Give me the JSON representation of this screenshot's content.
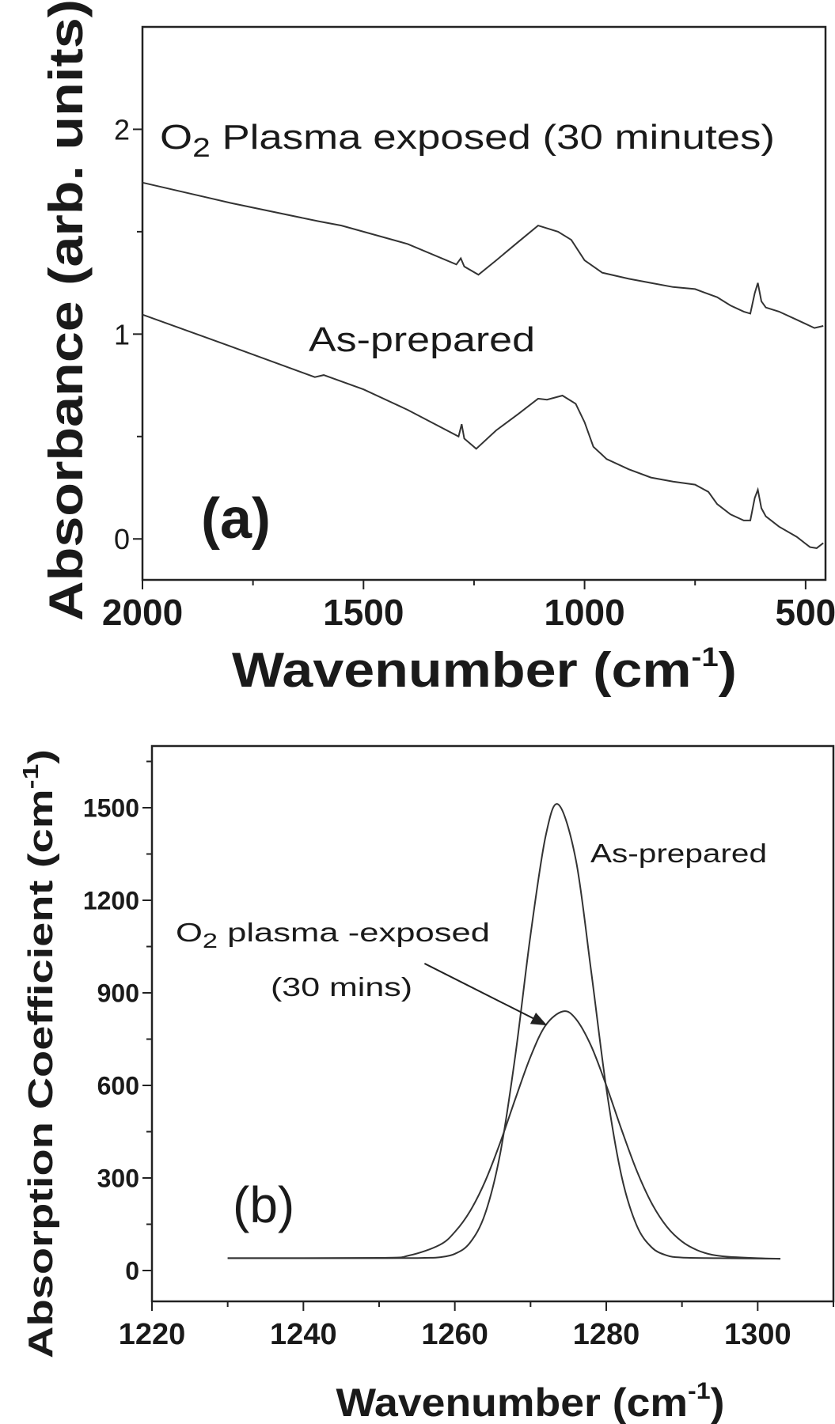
{
  "chart_data": [
    {
      "type": "line",
      "panel_label": "(a)",
      "xlabel": {
        "main": "Wavenumber (cm",
        "sup": "-1",
        "end": ")"
      },
      "ylabel": "Absorbance (arb. units)",
      "xlim": [
        2000,
        455
      ],
      "ylim": [
        -0.2,
        2.5
      ],
      "x_ticks": [
        "2000",
        "1500",
        "1000",
        "500"
      ],
      "x_tick_values": [
        2000,
        1500,
        1000,
        500
      ],
      "y_ticks": [
        "0",
        "1",
        "2"
      ],
      "y_tick_values": [
        0,
        1,
        2
      ],
      "grid": false,
      "annotations": [
        {
          "prefix": "O",
          "sub": "2",
          "rest": " Plasma exposed (30 minutes)"
        },
        {
          "text": "As-prepared"
        }
      ],
      "series": [
        {
          "points": [
            [
              2000,
              1.74
            ],
            [
              1800,
              1.64
            ],
            [
              1600,
              1.55
            ],
            [
              1550,
              1.53
            ],
            [
              1400,
              1.44
            ],
            [
              1290,
              1.34
            ],
            [
              1280,
              1.37
            ],
            [
              1272,
              1.33
            ],
            [
              1240,
              1.29
            ],
            [
              1200,
              1.36
            ],
            [
              1150,
              1.45
            ],
            [
              1105,
              1.53
            ],
            [
              1060,
              1.5
            ],
            [
              1030,
              1.46
            ],
            [
              1000,
              1.36
            ],
            [
              960,
              1.3
            ],
            [
              900,
              1.27
            ],
            [
              850,
              1.25
            ],
            [
              800,
              1.23
            ],
            [
              750,
              1.22
            ],
            [
              700,
              1.18
            ],
            [
              670,
              1.14
            ],
            [
              640,
              1.11
            ],
            [
              625,
              1.1
            ],
            [
              615,
              1.2
            ],
            [
              608,
              1.25
            ],
            [
              600,
              1.16
            ],
            [
              590,
              1.13
            ],
            [
              560,
              1.11
            ],
            [
              520,
              1.07
            ],
            [
              480,
              1.03
            ],
            [
              460,
              1.04
            ]
          ]
        },
        {
          "points": [
            [
              2000,
              1.095
            ],
            [
              1800,
              0.94
            ],
            [
              1610,
              0.79
            ],
            [
              1590,
              0.8
            ],
            [
              1500,
              0.73
            ],
            [
              1400,
              0.63
            ],
            [
              1285,
              0.5
            ],
            [
              1278,
              0.56
            ],
            [
              1272,
              0.49
            ],
            [
              1245,
              0.44
            ],
            [
              1200,
              0.53
            ],
            [
              1150,
              0.61
            ],
            [
              1105,
              0.685
            ],
            [
              1085,
              0.68
            ],
            [
              1050,
              0.7
            ],
            [
              1020,
              0.66
            ],
            [
              1000,
              0.57
            ],
            [
              980,
              0.45
            ],
            [
              950,
              0.39
            ],
            [
              900,
              0.34
            ],
            [
              850,
              0.3
            ],
            [
              800,
              0.28
            ],
            [
              750,
              0.265
            ],
            [
              720,
              0.23
            ],
            [
              700,
              0.17
            ],
            [
              670,
              0.12
            ],
            [
              640,
              0.09
            ],
            [
              625,
              0.09
            ],
            [
              615,
              0.2
            ],
            [
              608,
              0.24
            ],
            [
              600,
              0.15
            ],
            [
              590,
              0.11
            ],
            [
              560,
              0.06
            ],
            [
              520,
              0.01
            ],
            [
              490,
              -0.04
            ],
            [
              475,
              -0.045
            ],
            [
              460,
              -0.02
            ]
          ]
        }
      ]
    },
    {
      "type": "line",
      "panel_label": "(b)",
      "xlabel": {
        "main": "Wavenumber (cm",
        "sup": "-1",
        "end": ")"
      },
      "ylabel": "Absorption Coefficient (cm-1)",
      "ylabel_parts": {
        "main": "Absorption Coefficient (cm",
        "sup": "-1",
        "end": ")"
      },
      "xlim": [
        1220,
        1310
      ],
      "ylim": [
        -100,
        1700
      ],
      "x_ticks": [
        "1220",
        "1240",
        "1260",
        "1280",
        "1300"
      ],
      "x_tick_values": [
        1220,
        1240,
        1260,
        1280,
        1300
      ],
      "y_ticks": [
        "0",
        "300",
        "600",
        "900",
        "1200",
        "1500"
      ],
      "y_tick_values": [
        0,
        300,
        600,
        900,
        1200,
        1500
      ],
      "grid": false,
      "annotations": [
        {
          "text": "As-prepared"
        },
        {
          "prefix": "O",
          "sub": "2",
          "rest": " plasma -exposed",
          "line2": "(30 mins)"
        }
      ],
      "arrow": {
        "from": [
          1256,
          995
        ],
        "to": [
          1272,
          797
        ]
      },
      "series": [
        {
          "name": "As-prepared",
          "points": [
            [
              1230,
              40
            ],
            [
              1250,
              40
            ],
            [
              1256,
              41
            ],
            [
              1258,
              43
            ],
            [
              1260,
              54
            ],
            [
              1262,
              90
            ],
            [
              1264,
              184
            ],
            [
              1266,
              380
            ],
            [
              1268,
              699
            ],
            [
              1270,
              1088
            ],
            [
              1272,
              1409
            ],
            [
              1273.7,
              1510
            ],
            [
              1276,
              1329
            ],
            [
              1278,
              971
            ],
            [
              1280,
              592
            ],
            [
              1282,
              308
            ],
            [
              1284,
              147
            ],
            [
              1286,
              75
            ],
            [
              1288,
              49
            ],
            [
              1290,
              42
            ],
            [
              1295,
              40
            ],
            [
              1303,
              38
            ]
          ]
        },
        {
          "name": "O2 plasma -exposed (30 mins)",
          "points": [
            [
              1230,
              40
            ],
            [
              1250,
              41
            ],
            [
              1254,
              49
            ],
            [
              1258,
              83
            ],
            [
              1260,
              125
            ],
            [
              1262,
              192
            ],
            [
              1264,
              289
            ],
            [
              1266,
              415
            ],
            [
              1268,
              557
            ],
            [
              1270,
              693
            ],
            [
              1272,
              795
            ],
            [
              1274.3,
              840
            ],
            [
              1276,
              815
            ],
            [
              1278,
              728
            ],
            [
              1280,
              600
            ],
            [
              1282,
              458
            ],
            [
              1284,
              325
            ],
            [
              1286,
              218
            ],
            [
              1288,
              142
            ],
            [
              1290,
              94
            ],
            [
              1292,
              66
            ],
            [
              1294,
              51
            ],
            [
              1296,
              45
            ],
            [
              1300,
              40
            ],
            [
              1303,
              38
            ]
          ]
        }
      ]
    }
  ]
}
